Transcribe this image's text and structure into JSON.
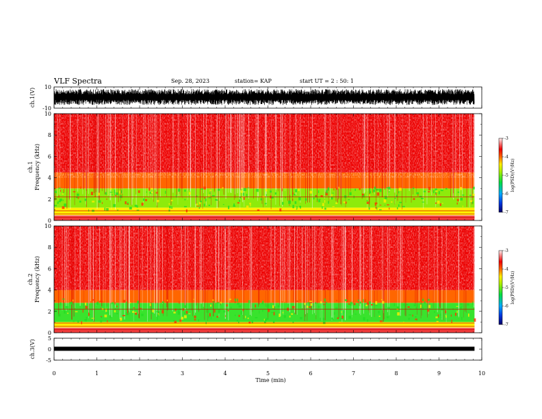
{
  "header": {
    "title": "VLF Spectra",
    "date": "Sep. 28, 2023",
    "station": "station= KAP",
    "start": "start  UT =   2 : 50: 1"
  },
  "colors": {
    "spec_low": "#0000cc",
    "spec_mid": "#00dd33",
    "spec_high": "#ffee00",
    "spec_top": "#ee1111",
    "trace": "#000000"
  },
  "chart_data": [
    {
      "type": "line",
      "id": "ch1-waveform",
      "ylabel": "ch.1(V)",
      "ylim": [
        -10,
        10
      ],
      "yticks": [
        "10",
        "-10"
      ],
      "xlim": [
        0,
        10
      ],
      "x_extent": [
        0,
        9.83
      ],
      "note_values": "dense waveform, amplitude roughly between -7 and 8 V"
    },
    {
      "type": "heatmap",
      "id": "ch1-spectrogram",
      "ylabel_top": "ch.1",
      "ylabel": "Frequency  (kHz)",
      "ylim": [
        0,
        10
      ],
      "yticks": [
        "0",
        "2",
        "4",
        "6",
        "8",
        "10"
      ],
      "xlim": [
        0,
        10
      ],
      "x_extent": [
        0,
        9.83
      ],
      "bands_khz": [
        {
          "from": 0,
          "to": 0.5,
          "level": -3.2
        },
        {
          "from": 0.5,
          "to": 1.2,
          "level": -4.4
        },
        {
          "from": 1.2,
          "to": 3.0,
          "level": -4.9
        },
        {
          "from": 3.0,
          "to": 4.5,
          "level": -4.0
        },
        {
          "from": 4.5,
          "to": 10,
          "level": -3.6
        }
      ],
      "colorbar": {
        "label": "log(PSD)(V²/Hz)",
        "range": [
          -7,
          -3
        ],
        "ticks": [
          "-3",
          "-4",
          "-5",
          "-6",
          "-7"
        ]
      }
    },
    {
      "type": "heatmap",
      "id": "ch2-spectrogram",
      "ylabel_top": "ch.2",
      "ylabel": "Frequency  (kHz)",
      "ylim": [
        0,
        10
      ],
      "yticks": [
        "0",
        "2",
        "4",
        "6",
        "8",
        "10"
      ],
      "xlim": [
        0,
        10
      ],
      "x_extent": [
        0,
        9.83
      ],
      "bands_khz": [
        {
          "from": 0,
          "to": 0.5,
          "level": -3.2
        },
        {
          "from": 0.5,
          "to": 1.0,
          "level": -4.4
        },
        {
          "from": 1.0,
          "to": 2.8,
          "level": -5.2
        },
        {
          "from": 2.8,
          "to": 4.0,
          "level": -4.0
        },
        {
          "from": 4.0,
          "to": 10,
          "level": -3.6
        }
      ],
      "colorbar": {
        "label": "log(PSD)(V²/Hz)",
        "range": [
          -7,
          -3
        ],
        "ticks": [
          "-3",
          "-4",
          "-5",
          "-6",
          "-7"
        ]
      }
    },
    {
      "type": "line",
      "id": "ch3-waveform",
      "ylabel": "ch.3(V)",
      "ylim": [
        -5,
        5
      ],
      "yticks": [
        "5",
        "0",
        "-5"
      ],
      "xlim": [
        0,
        10
      ],
      "x_extent": [
        0,
        9.83
      ],
      "note_values": "nearly constant trace at about 0 V"
    }
  ],
  "xaxis": {
    "label": "Time  (min)",
    "ticks": [
      "0",
      "1",
      "2",
      "3",
      "4",
      "5",
      "6",
      "7",
      "8",
      "9",
      "10"
    ]
  }
}
